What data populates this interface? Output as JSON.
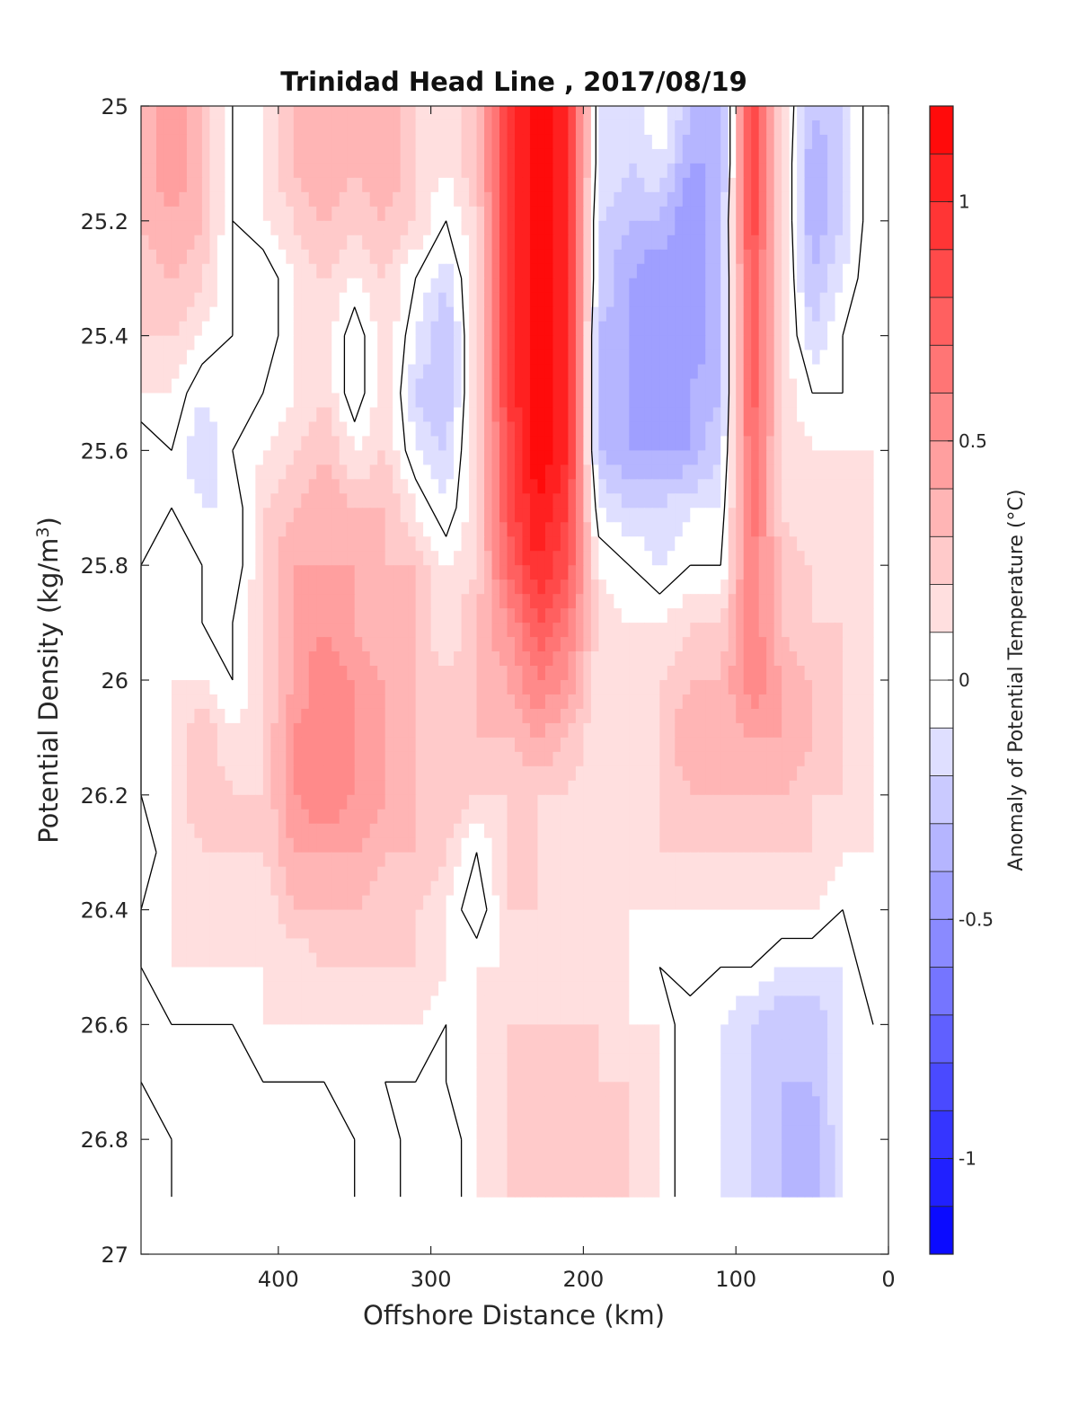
{
  "chart_data": {
    "type": "heatmap",
    "title": "Trinidad Head Line , 2017/08/19",
    "xlabel": "Offshore Distance (km)",
    "ylabel_main": "Potential Density (kg/m",
    "ylabel_sup": "3",
    "ylabel_close": ")",
    "colorbar_label": "Anomaly of Potential Temperature (°C)",
    "xlim": [
      490,
      0
    ],
    "ylim": [
      25,
      27
    ],
    "x_ticks": [
      400,
      300,
      200,
      100,
      0
    ],
    "x_tick_labels": [
      "400",
      "300",
      "200",
      "100",
      "0"
    ],
    "y_ticks": [
      25,
      25.2,
      25.4,
      25.6,
      25.8,
      26,
      26.2,
      26.4,
      26.6,
      26.8,
      27
    ],
    "y_tick_labels": [
      "25",
      "25.2",
      "25.4",
      "25.6",
      "25.8",
      "26",
      "26.2",
      "26.4",
      "26.6",
      "26.8",
      "27"
    ],
    "clim": [
      -1.2,
      1.2
    ],
    "colorbar_ticks": [
      1,
      0.5,
      0,
      -0.5,
      -1
    ],
    "colorbar_tick_labels": [
      "1",
      "0.5",
      "0",
      "-0.5",
      "-1"
    ],
    "colormap": "blue-white-red, 24 levels",
    "zero_contour": "black",
    "data_extent": {
      "x": [
        490,
        10
      ],
      "y": [
        25,
        26.9
      ]
    },
    "x": [
      490,
      470,
      450,
      430,
      410,
      390,
      370,
      350,
      330,
      310,
      290,
      270,
      250,
      230,
      210,
      190,
      170,
      150,
      130,
      110,
      90,
      70,
      50,
      30,
      10
    ],
    "y": [
      25,
      25.1,
      25.2,
      25.3,
      25.4,
      25.5,
      25.6,
      25.7,
      25.8,
      25.9,
      26,
      26.1,
      26.2,
      26.3,
      26.4,
      26.5,
      26.6,
      26.7,
      26.8,
      26.9
    ],
    "z": [
      [
        0.3,
        0.5,
        0.3,
        0.0,
        0.1,
        0.3,
        0.4,
        0.3,
        0.4,
        0.2,
        0.1,
        0.3,
        0.9,
        1.2,
        1.0,
        -0.1,
        -0.2,
        0.0,
        -0.3,
        -0.4,
        0.9,
        0.2,
        -0.3,
        -0.2,
        0.1
      ],
      [
        0.3,
        0.5,
        0.3,
        0.0,
        0.1,
        0.3,
        0.4,
        0.3,
        0.4,
        0.2,
        0.1,
        0.3,
        0.9,
        1.2,
        1.0,
        -0.1,
        -0.2,
        -0.1,
        -0.4,
        -0.4,
        0.9,
        0.2,
        -0.4,
        -0.2,
        0.1
      ],
      [
        0.3,
        0.4,
        0.3,
        0.0,
        0.1,
        0.2,
        0.3,
        0.2,
        0.3,
        0.2,
        0.0,
        0.2,
        0.9,
        1.2,
        1.0,
        -0.2,
        -0.3,
        -0.3,
        -0.5,
        -0.3,
        0.9,
        0.2,
        -0.4,
        -0.2,
        0.1
      ],
      [
        0.2,
        0.3,
        0.2,
        0.0,
        -0.1,
        0.1,
        0.2,
        0.1,
        0.2,
        0.0,
        -0.2,
        0.2,
        0.9,
        1.2,
        1.0,
        -0.2,
        -0.4,
        -0.5,
        -0.5,
        -0.3,
        0.8,
        0.2,
        -0.3,
        -0.1,
        0.1
      ],
      [
        0.2,
        0.2,
        0.1,
        0.0,
        -0.1,
        0.1,
        0.2,
        -0.1,
        0.2,
        -0.1,
        -0.3,
        0.2,
        0.9,
        1.2,
        1.0,
        -0.3,
        -0.4,
        -0.5,
        -0.5,
        -0.3,
        0.8,
        0.2,
        -0.2,
        0.0,
        0.1
      ],
      [
        0.1,
        0.1,
        -0.1,
        0.0,
        0.0,
        0.1,
        0.2,
        -0.1,
        0.2,
        -0.2,
        -0.3,
        0.2,
        0.9,
        1.2,
        1.0,
        -0.3,
        -0.4,
        -0.5,
        -0.4,
        -0.3,
        0.8,
        0.2,
        0.0,
        0.0,
        0.1
      ],
      [
        -0.1,
        0.0,
        -0.2,
        0.0,
        0.1,
        0.2,
        0.3,
        0.1,
        0.2,
        -0.1,
        -0.2,
        0.2,
        0.8,
        1.2,
        1.0,
        -0.3,
        -0.4,
        -0.4,
        -0.4,
        -0.2,
        0.7,
        0.2,
        0.1,
        0.1,
        0.1
      ],
      [
        -0.1,
        0.0,
        -0.1,
        -0.1,
        0.2,
        0.3,
        0.4,
        0.3,
        0.3,
        0.1,
        -0.1,
        0.2,
        0.8,
        1.1,
        0.9,
        -0.1,
        -0.2,
        -0.2,
        -0.1,
        -0.1,
        0.7,
        0.2,
        0.1,
        0.1,
        0.1
      ],
      [
        0.0,
        0.1,
        0.0,
        -0.1,
        0.2,
        0.4,
        0.4,
        0.4,
        0.3,
        0.3,
        0.1,
        0.2,
        0.7,
        1.0,
        0.8,
        0.1,
        0.0,
        -0.1,
        0.0,
        0.0,
        0.6,
        0.3,
        0.2,
        0.1,
        0.1
      ],
      [
        0.0,
        0.1,
        0.0,
        0.0,
        0.2,
        0.4,
        0.5,
        0.4,
        0.3,
        0.3,
        0.1,
        0.3,
        0.5,
        0.8,
        0.6,
        0.2,
        0.1,
        0.1,
        0.2,
        0.2,
        0.6,
        0.3,
        0.2,
        0.2,
        0.2
      ],
      [
        0.0,
        0.1,
        0.1,
        0.0,
        0.2,
        0.4,
        0.6,
        0.5,
        0.4,
        0.3,
        0.2,
        0.3,
        0.4,
        0.6,
        0.5,
        0.1,
        0.1,
        0.2,
        0.3,
        0.3,
        0.6,
        0.4,
        0.3,
        0.2,
        0.1
      ],
      [
        0.0,
        0.1,
        0.3,
        0.1,
        0.2,
        0.5,
        0.6,
        0.5,
        0.4,
        0.3,
        0.2,
        0.3,
        0.3,
        0.4,
        0.3,
        0.1,
        0.1,
        0.2,
        0.4,
        0.3,
        0.4,
        0.4,
        0.3,
        0.2,
        0.1
      ],
      [
        0.0,
        0.1,
        0.3,
        0.2,
        0.2,
        0.5,
        0.6,
        0.5,
        0.4,
        0.3,
        0.3,
        0.2,
        0.2,
        0.2,
        0.2,
        0.1,
        0.1,
        0.2,
        0.3,
        0.3,
        0.3,
        0.3,
        0.2,
        0.2,
        0.1
      ],
      [
        -0.1,
        0.1,
        0.2,
        0.2,
        0.2,
        0.4,
        0.4,
        0.4,
        0.3,
        0.3,
        0.2,
        0.0,
        0.2,
        0.2,
        0.1,
        0.1,
        0.1,
        0.2,
        0.2,
        0.2,
        0.2,
        0.2,
        0.2,
        0.1,
        0.1
      ],
      [
        0.0,
        0.1,
        0.2,
        0.1,
        0.1,
        0.3,
        0.3,
        0.3,
        0.2,
        0.2,
        0.1,
        -0.1,
        0.2,
        0.2,
        0.1,
        0.1,
        0.1,
        0.1,
        0.1,
        0.1,
        0.1,
        0.1,
        0.1,
        0.0,
        0.1
      ],
      [
        0.0,
        0.1,
        0.1,
        0.1,
        0.1,
        0.1,
        0.2,
        0.2,
        0.2,
        0.2,
        0.1,
        0.1,
        0.1,
        0.1,
        0.2,
        0.1,
        0.1,
        0.0,
        0.1,
        0.0,
        0.0,
        -0.1,
        -0.1,
        -0.1,
        0.1
      ],
      [
        0.0,
        0.0,
        0.0,
        0.0,
        0.1,
        0.1,
        0.1,
        0.1,
        0.1,
        0.1,
        0.0,
        0.1,
        0.2,
        0.2,
        0.2,
        0.2,
        0.1,
        0.1,
        -0.1,
        -0.1,
        -0.2,
        -0.3,
        -0.3,
        -0.1,
        0.0
      ],
      [
        0.0,
        0.0,
        0.0,
        0.0,
        0.0,
        0.0,
        0.0,
        0.1,
        0.0,
        0.0,
        0.0,
        0.1,
        0.2,
        0.2,
        0.2,
        0.2,
        0.2,
        0.1,
        -0.1,
        -0.1,
        -0.2,
        -0.3,
        -0.3,
        -0.1,
        0.0
      ],
      [
        0.1,
        0.0,
        0.0,
        0.0,
        0.0,
        0.0,
        0.0,
        0.0,
        0.1,
        -0.1,
        -0.1,
        0.1,
        0.2,
        0.2,
        0.3,
        0.2,
        0.2,
        0.1,
        -0.1,
        -0.1,
        -0.2,
        -0.3,
        -0.4,
        -0.1,
        0.0
      ],
      [
        0.1,
        0.0,
        0.0,
        0.0,
        0.0,
        0.0,
        0.0,
        0.0,
        0.1,
        -0.1,
        -0.1,
        0.1,
        0.2,
        0.2,
        0.3,
        0.2,
        0.2,
        0.1,
        -0.1,
        -0.1,
        -0.2,
        -0.3,
        -0.4,
        -0.1,
        0.0
      ]
    ]
  }
}
